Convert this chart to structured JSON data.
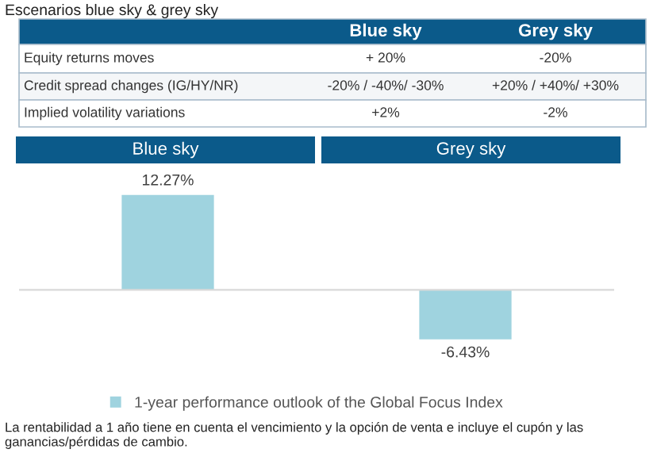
{
  "chart_data": {
    "type": "bar",
    "title": "Escenarios blue sky & grey sky",
    "categories": [
      "Blue sky",
      "Grey sky"
    ],
    "series": [
      {
        "name": "1-year performance outlook of the Global Focus Index",
        "color": "#9fd3df",
        "values": [
          12.27,
          -6.43
        ],
        "value_labels": [
          "12.27%",
          "-6.43%"
        ]
      }
    ],
    "legend": "bottom",
    "annotations": [
      "Blue sky",
      "Grey sky",
      "Equity returns moves",
      "+ 20%",
      "-20%",
      "Credit spread changes (IG/HY/NR)",
      "-20% / -40%/ -30%",
      "+20% / +40%/ +30%",
      "Implied volatility variations",
      "+2%",
      "-2%",
      "La rentabilidad a 1 año tiene en cuenta el vencimiento y la opción de venta e incluye el cupón y las ganancias/pérdidas de cambio."
    ]
  }
}
